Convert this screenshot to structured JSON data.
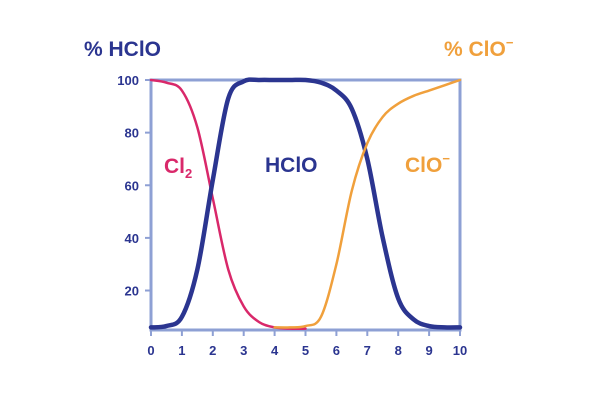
{
  "chart_data": {
    "type": "line",
    "title_left": "% HClO",
    "title_right": "% ClO",
    "title_right_superscript": "−",
    "xlabel": "",
    "ylabel": "",
    "xlim": [
      0,
      10
    ],
    "ylim": [
      5,
      100
    ],
    "x_ticks": [
      "0",
      "1",
      "2",
      "3",
      "4",
      "5",
      "6",
      "7",
      "8",
      "9",
      "10"
    ],
    "y_ticks": [
      "20",
      "40",
      "60",
      "80",
      "100"
    ],
    "grid": false,
    "x": [
      0,
      0.5,
      1,
      1.5,
      2,
      2.5,
      3,
      3.5,
      4,
      4.5,
      5,
      5.5,
      6,
      6.5,
      7,
      7.5,
      8,
      8.5,
      9,
      9.5,
      10
    ],
    "series": [
      {
        "name": "Cl",
        "label_subscript": "2",
        "color": "#d9286a",
        "values": [
          100,
          99,
          96,
          82,
          55,
          28,
          14,
          8,
          6,
          5.5,
          5.5,
          null,
          null,
          null,
          null,
          null,
          null,
          null,
          null,
          null,
          null
        ]
      },
      {
        "name": "HClO",
        "label_subscript": "",
        "color": "#2b3590",
        "values": [
          6,
          6.5,
          10,
          28,
          62,
          93,
          99.5,
          100,
          100,
          100,
          100,
          99,
          96,
          89,
          70,
          40,
          17,
          9,
          6.5,
          6,
          6
        ]
      },
      {
        "name": "ClO",
        "label_superscript": "−",
        "color": "#f0a03c",
        "values": [
          null,
          null,
          null,
          null,
          null,
          null,
          null,
          null,
          6,
          6,
          6.5,
          10,
          30,
          58,
          76,
          86,
          91,
          94,
          96,
          98,
          100
        ]
      }
    ],
    "colors": {
      "frame": "#8ea0d4",
      "tick_text": "#2b3590",
      "title_left": "#2b3590",
      "title_right": "#f0a03c"
    }
  }
}
